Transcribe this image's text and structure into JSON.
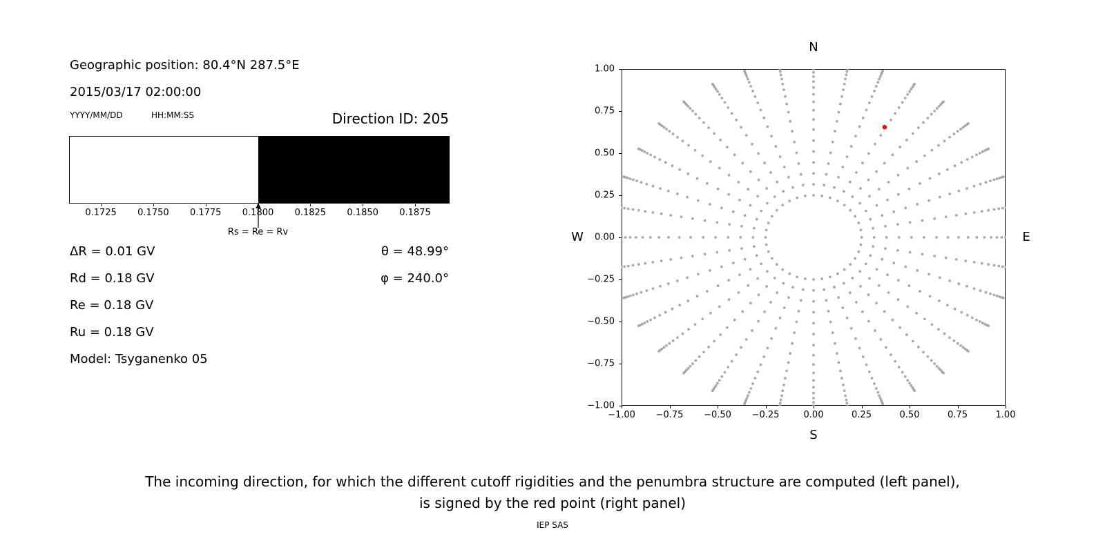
{
  "colors": {
    "background": "#ffffff",
    "text": "#000000",
    "dot_gray": "#999999",
    "red_point": "#ff0000",
    "forbidden_black": "#000000",
    "allowed_white": "#ffffff"
  },
  "left_panel": {
    "geo_position": "Geographic position: 80.4°N 287.5°E",
    "datetime": "2015/03/17 02:00:00",
    "date_format_label": "YYYY/MM/DD",
    "time_format_label": "HH:MM:SS",
    "direction_id_label": "Direction ID: 205",
    "rigidity_values": [
      "ΔR = 0.01 GV",
      "Rd = 0.18 GV",
      "Re = 0.18 GV",
      "Ru = 0.18 GV"
    ],
    "model_label": "Model: Tsyganenko 05",
    "theta_label": "θ = 48.99°",
    "phi_label": "φ = 240.0°"
  },
  "chart_data": [
    {
      "type": "bar",
      "name": "penumbra-structure",
      "x_min": 0.17098,
      "x_max": 0.18915,
      "cutoff_boundary": 0.18,
      "allowed_region": {
        "from": 0.17098,
        "to": 0.18,
        "color": "#ffffff",
        "meaning": "allowed rigidities"
      },
      "forbidden_region": {
        "from": 0.18,
        "to": 0.18915,
        "color": "#000000",
        "meaning": "forbidden rigidities"
      },
      "xticks": [
        0.1725,
        0.175,
        0.1775,
        0.18,
        0.1825,
        0.185,
        0.1875
      ],
      "xtick_labels": [
        "0.1725",
        "0.1750",
        "0.1775",
        "0.1800",
        "0.1825",
        "0.1850",
        "0.1875"
      ],
      "annotation": {
        "text": "Rs = Re = Rv",
        "x": 0.18
      },
      "grid": false,
      "legend": false
    },
    {
      "type": "scatter",
      "name": "incoming-directions-sky-map",
      "xlim": [
        -1,
        1
      ],
      "ylim": [
        -1,
        1
      ],
      "xtick_labels": [
        "−1.00",
        "−0.75",
        "−0.50",
        "−0.25",
        "0.00",
        "0.25",
        "0.50",
        "0.75",
        "1.00"
      ],
      "ytick_labels": [
        "1.00",
        "0.75",
        "0.50",
        "0.25",
        "0.00",
        "−0.25",
        "−0.50",
        "−0.75",
        "−1.00"
      ],
      "compass": {
        "north": "N",
        "south": "S",
        "west": "W",
        "east": "E"
      },
      "grid_points": {
        "description": "radial spokes of gray dots: azimuths every 10 degrees, dots at listed radii, clipped to axes square",
        "azimuth_step_deg": 10,
        "radii": [
          0.25,
          0.315,
          0.38,
          0.445,
          0.51,
          0.575,
          0.64,
          0.7,
          0.755,
          0.805,
          0.85,
          0.89,
          0.925,
          0.955,
          0.98,
          1.0,
          1.016,
          1.03,
          1.042,
          1.052
        ],
        "color": "#999999"
      },
      "red_point": {
        "x": 0.37,
        "y": 0.655,
        "color": "#ff0000"
      },
      "grid": false,
      "legend": false
    }
  ],
  "caption": {
    "line1": "The incoming direction, for which the different cutoff rigidities and the penumbra structure are computed (left panel),",
    "line2": "is signed by the red point (right panel)",
    "credit": "IEP SAS"
  }
}
